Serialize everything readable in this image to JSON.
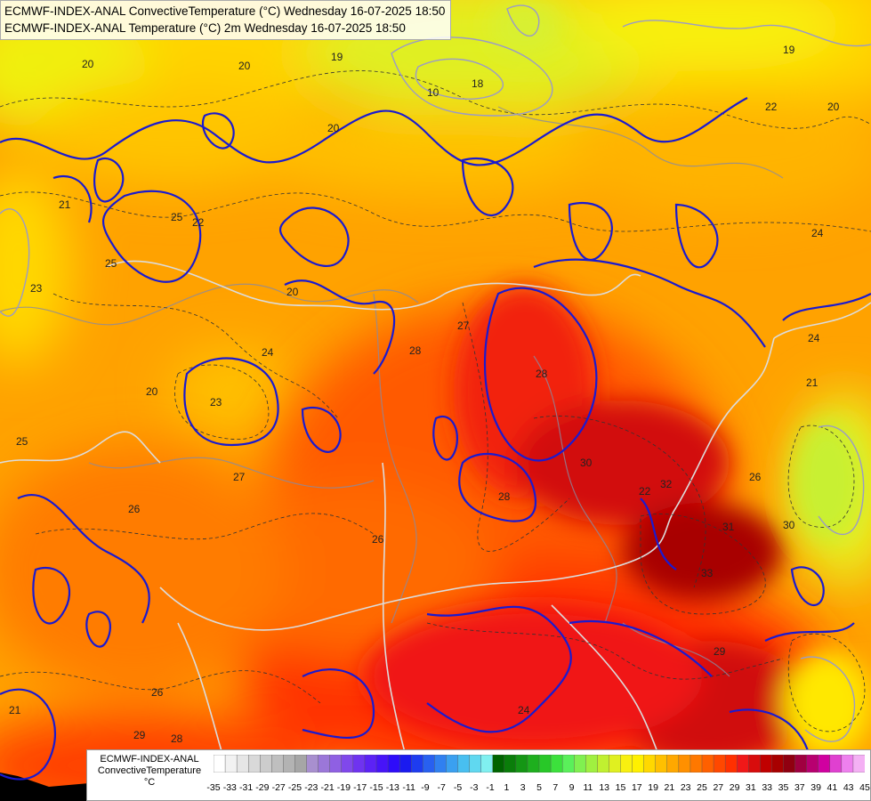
{
  "titles": {
    "line1": "ECMWF-INDEX-ANAL ConvectiveTemperature (°C) Wednesday 16-07-2025 18:50",
    "line2": "ECMWF-INDEX-ANAL Temperature (°C) 2m Wednesday 16-07-2025 18:50"
  },
  "legend": {
    "line1": "ECMWF-INDEX-ANAL",
    "line2": "ConvectiveTemperature",
    "unit": "°C",
    "ticks": [
      "-35",
      "-33",
      "-31",
      "-29",
      "-27",
      "-25",
      "-23",
      "-21",
      "-19",
      "-17",
      "-15",
      "-13",
      "-11",
      "-9",
      "-7",
      "-5",
      "-3",
      "-1",
      "1",
      "3",
      "5",
      "7",
      "9",
      "11",
      "13",
      "15",
      "17",
      "19",
      "21",
      "23",
      "25",
      "27",
      "29",
      "31",
      "33",
      "35",
      "37",
      "39",
      "41",
      "43",
      "45"
    ],
    "colors": [
      "#ffffff",
      "#f2f2f2",
      "#e6e6e6",
      "#d9d9d9",
      "#cccccc",
      "#bfbfbf",
      "#b3b3b3",
      "#a6a6a6",
      "#a88fcf",
      "#9b77d9",
      "#8f60e3",
      "#8048eb",
      "#6f33f0",
      "#5c22f5",
      "#4714f8",
      "#2e0cfa",
      "#1a1af0",
      "#1e3cf0",
      "#2860f0",
      "#3080f0",
      "#3aa0f0",
      "#48bff0",
      "#60d8f0",
      "#80f0f0",
      "#006400",
      "#0a7d0a",
      "#149614",
      "#1eaf1e",
      "#28c828",
      "#3ce13c",
      "#5af05a",
      "#80f050",
      "#a0f040",
      "#c0f030",
      "#e0f020",
      "#f8f010",
      "#fff000",
      "#ffd800",
      "#ffc000",
      "#ffa800",
      "#ff9000",
      "#ff7800",
      "#ff6000",
      "#ff4800",
      "#ff3000",
      "#f01818",
      "#d80c0c",
      "#c00000",
      "#a80000",
      "#900010",
      "#a00040",
      "#b80070",
      "#d000a0",
      "#e040d0",
      "#ee80ee",
      "#f4b0f4"
    ]
  },
  "contour_labels": [
    "20",
    "20",
    "19",
    "18",
    "19",
    "10",
    "20",
    "22",
    "20",
    "23",
    "25",
    "22",
    "25",
    "21",
    "27",
    "20",
    "24",
    "28",
    "30",
    "32",
    "31",
    "33",
    "26",
    "29",
    "30",
    "28",
    "26",
    "22",
    "24",
    "21",
    "26",
    "27",
    "29",
    "24",
    "26",
    "28",
    "24",
    "28",
    "23",
    "20",
    "21",
    "25"
  ],
  "colors": {
    "temp_isoline": "#1a1ad0",
    "border": "#d9d9d9",
    "river": "#8a8aa0"
  }
}
